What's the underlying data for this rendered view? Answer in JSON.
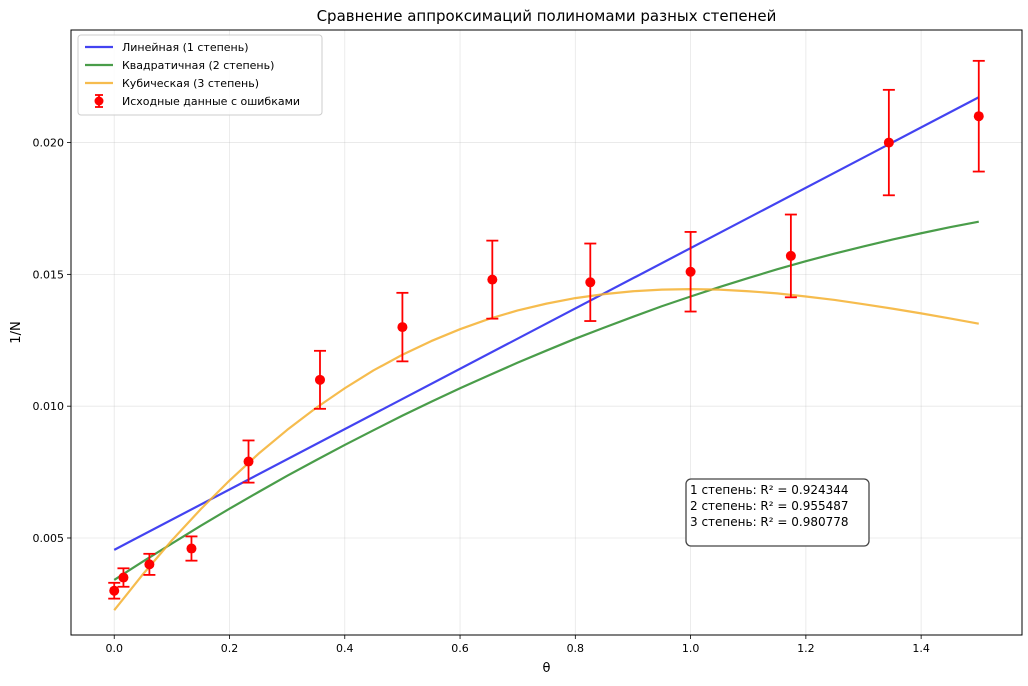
{
  "chart_data": {
    "type": "line",
    "title": "Сравнение аппроксимаций полиномами разных степеней",
    "xlabel": "θ",
    "ylabel": "1/N",
    "xlim": [
      -0.075,
      1.575
    ],
    "ylim": [
      0.00132,
      0.02427
    ],
    "xticks": [
      0.0,
      0.2,
      0.4,
      0.6,
      0.8,
      1.0,
      1.2,
      1.4
    ],
    "xtick_labels": [
      "0.0",
      "0.2",
      "0.4",
      "0.6",
      "0.8",
      "1.0",
      "1.2",
      "1.4"
    ],
    "yticks": [
      0.005,
      0.01,
      0.015,
      0.02
    ],
    "ytick_labels": [
      "0.005",
      "0.010",
      "0.015",
      "0.020"
    ],
    "grid": true,
    "legend_position": "top-left",
    "series": [
      {
        "name": "Линейная (1 степень)",
        "kind": "line",
        "color": "#2222ee",
        "x": [
          0.0,
          1.5
        ],
        "y": [
          0.00455,
          0.02172
        ]
      },
      {
        "name": "Квадратичная (2 степень)",
        "kind": "line",
        "color": "#2a8c2a",
        "x": [
          0.0,
          0.05,
          0.1,
          0.15,
          0.2,
          0.25,
          0.3,
          0.35,
          0.4,
          0.45,
          0.5,
          0.55,
          0.6,
          0.65,
          0.7,
          0.75,
          0.8,
          0.85,
          0.9,
          0.95,
          1.0,
          1.05,
          1.1,
          1.15,
          1.2,
          1.25,
          1.3,
          1.35,
          1.4,
          1.45,
          1.5
        ],
        "y": [
          0.00341,
          0.00411,
          0.00479,
          0.00546,
          0.00611,
          0.00674,
          0.00736,
          0.00795,
          0.00853,
          0.00909,
          0.00964,
          0.01017,
          0.01068,
          0.01117,
          0.01165,
          0.01211,
          0.01256,
          0.01298,
          0.01339,
          0.01379,
          0.01416,
          0.01452,
          0.01486,
          0.01519,
          0.0155,
          0.01579,
          0.01606,
          0.01632,
          0.01656,
          0.01679,
          0.017
        ]
      },
      {
        "name": "Кубическая (3 степень)",
        "kind": "line",
        "color": "#f5b02f",
        "x": [
          0.0,
          0.05,
          0.1,
          0.15,
          0.2,
          0.25,
          0.3,
          0.35,
          0.4,
          0.45,
          0.5,
          0.55,
          0.6,
          0.65,
          0.7,
          0.75,
          0.8,
          0.85,
          0.9,
          0.95,
          1.0,
          1.05,
          1.1,
          1.15,
          1.2,
          1.25,
          1.3,
          1.35,
          1.4,
          1.45,
          1.5
        ],
        "y": [
          0.00226,
          0.00363,
          0.00491,
          0.00609,
          0.00718,
          0.00819,
          0.0091,
          0.00993,
          0.01068,
          0.01136,
          0.01195,
          0.01247,
          0.01292,
          0.01331,
          0.01363,
          0.01389,
          0.0141,
          0.01425,
          0.01436,
          0.01442,
          0.01444,
          0.01442,
          0.01436,
          0.01428,
          0.01416,
          0.01403,
          0.01387,
          0.0137,
          0.01352,
          0.01333,
          0.01313
        ]
      },
      {
        "name": "Исходные данные с ошибками",
        "kind": "errorbar",
        "color": "#ff0000",
        "x": [
          0.0,
          0.016,
          0.061,
          0.134,
          0.233,
          0.357,
          0.5,
          0.656,
          0.826,
          1.0,
          1.174,
          1.344,
          1.5
        ],
        "y": [
          0.003,
          0.0035,
          0.004,
          0.0046,
          0.0079,
          0.011,
          0.013,
          0.0148,
          0.0147,
          0.0151,
          0.0157,
          0.02,
          0.021
        ],
        "yerr": [
          0.0003,
          0.00035,
          0.0004,
          0.00046,
          0.0008,
          0.0011,
          0.0013,
          0.00148,
          0.00147,
          0.00151,
          0.00157,
          0.002,
          0.0021
        ]
      }
    ],
    "annotation": {
      "lines": [
        "1 степень: R² = 0.924344",
        "2 степень: R² = 0.955487",
        "3 степень: R² = 0.980778"
      ]
    }
  }
}
